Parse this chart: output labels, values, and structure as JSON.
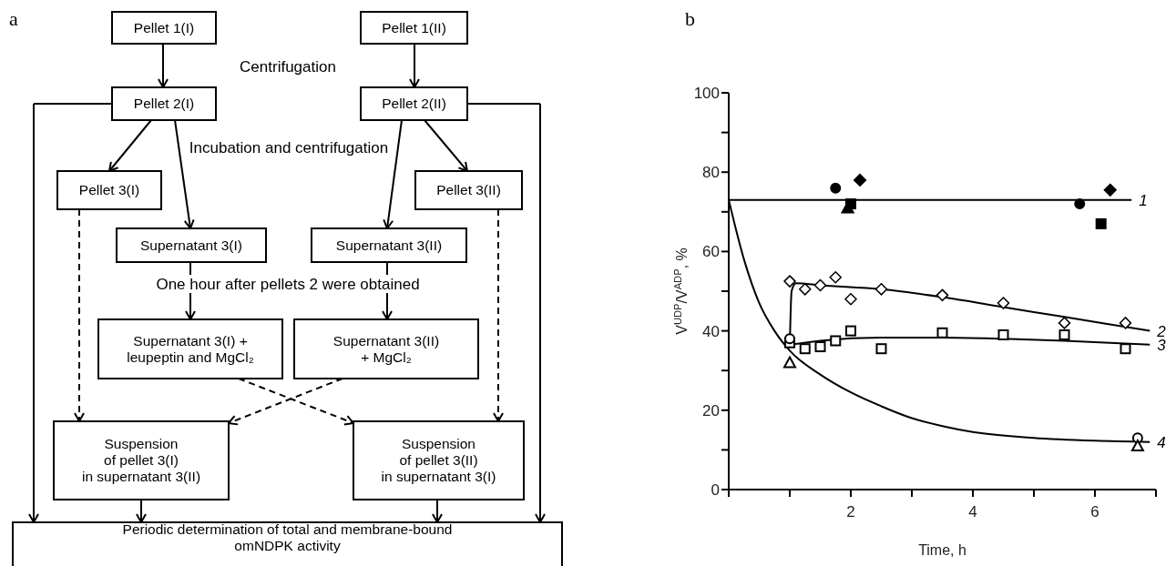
{
  "chart_data": [
    {
      "type": "other",
      "title": "a",
      "annotations": [
        "Pellet 1(I)",
        "Pellet 1(II)",
        "Centrifugation",
        "Pellet 2(I)",
        "Pellet 2(II)",
        "Incubation and centrifugation",
        "Pellet 3(I)",
        "Pellet 3(II)",
        "Supernatant 3(I)",
        "Supernatant 3(II)",
        "One hour after pellets 2 were obtained",
        "Supernatant 3(I) +\nleupeptin and MgCl₂",
        "Supernatant 3(II)\n+ MgCl₂",
        "Suspension\nof pellet 3(I)\nin supernatant 3(II)",
        "Suspension\nof pellet 3(II)\nin supernatant 3(I)",
        "Periodic determination of total and membrane-bound\nomNDPK activity"
      ]
    },
    {
      "type": "scatter",
      "title": "b",
      "xlabel": "Time, h",
      "ylabel": "V$^{UDP}$/V$^{ADP}$, %",
      "xlim": [
        0,
        7
      ],
      "ylim": [
        0,
        100
      ],
      "xticks": [
        {
          "value": 0,
          "label": null
        },
        {
          "value": 1,
          "label": null
        },
        2,
        {
          "value": 3,
          "label": null
        },
        4,
        {
          "value": 5,
          "label": null
        },
        6,
        {
          "value": 7,
          "label": null
        }
      ],
      "yticks": [
        0,
        {
          "value": 10,
          "label": null
        },
        20,
        {
          "value": 30,
          "label": null
        },
        40,
        {
          "value": 50,
          "label": null
        },
        60,
        {
          "value": 70,
          "label": null
        },
        80,
        {
          "value": 90,
          "label": null
        },
        100
      ],
      "series": [
        {
          "type": "line",
          "name": "1",
          "color": "#000000",
          "marker": "none",
          "x": [
            0,
            6.6
          ],
          "values": [
            73,
            73
          ]
        },
        {
          "type": "line",
          "name": "2",
          "color": "#000000",
          "marker": "none",
          "x": [
            1,
            1.03,
            1.1,
            1.5,
            2.5,
            3.5,
            4.5,
            5.5,
            6.9
          ],
          "values": [
            36,
            50,
            52,
            51.5,
            50.5,
            48.5,
            46,
            43.5,
            40
          ]
        },
        {
          "type": "line",
          "name": "3",
          "color": "#000000",
          "marker": "none",
          "x": [
            1,
            1.5,
            2.5,
            3.5,
            4.5,
            5.5,
            6.9
          ],
          "values": [
            36.5,
            37.5,
            38.3,
            38.3,
            38,
            37.5,
            36.5
          ]
        },
        {
          "type": "line",
          "name": "4",
          "color": "#000000",
          "marker": "none",
          "x": [
            0,
            0.25,
            0.5,
            0.75,
            1,
            1.5,
            2,
            2.5,
            3,
            3.5,
            4,
            5,
            6,
            6.9
          ],
          "values": [
            73,
            58,
            47,
            40,
            35,
            29,
            24.5,
            21,
            18,
            16,
            14.5,
            13,
            12.3,
            12
          ]
        },
        {
          "type": "scatter",
          "color": "#000000",
          "marker": "circle",
          "x": [
            1.75,
            5.75
          ],
          "values": [
            76,
            72
          ]
        },
        {
          "type": "scatter",
          "color": "#000000",
          "marker": "square",
          "x": [
            2.0,
            6.1
          ],
          "values": [
            72,
            67
          ]
        },
        {
          "type": "scatter",
          "color": "#000000",
          "marker": "triangle",
          "x": [
            1.95
          ],
          "values": [
            71
          ]
        },
        {
          "type": "scatter",
          "color": "#000000",
          "marker": "diamond",
          "x": [
            2.15,
            6.25
          ],
          "values": [
            78,
            75.5
          ]
        },
        {
          "type": "scatter",
          "color": "#ffffff",
          "marker": "diamond",
          "x": [
            1,
            1.25,
            1.5,
            1.75,
            2,
            2.5,
            3.5,
            4.5,
            5.5,
            6.5
          ],
          "values": [
            52.5,
            50.5,
            51.5,
            53.5,
            48,
            50.5,
            49,
            47,
            42,
            42
          ]
        },
        {
          "type": "scatter",
          "color": "#ffffff",
          "marker": "square",
          "x": [
            1,
            1.25,
            1.5,
            1.75,
            2,
            2.5,
            3.5,
            4.5,
            5.5,
            6.5
          ],
          "values": [
            37,
            35.5,
            36,
            37.5,
            40,
            35.5,
            39.5,
            39,
            39,
            35.5
          ]
        },
        {
          "type": "scatter",
          "color": "#ffffff",
          "marker": "circle",
          "x": [
            1,
            6.7
          ],
          "values": [
            38,
            13
          ]
        },
        {
          "type": "scatter",
          "color": "#ffffff",
          "marker": "triangle",
          "x": [
            1,
            6.7
          ],
          "values": [
            32,
            11
          ]
        }
      ]
    }
  ]
}
